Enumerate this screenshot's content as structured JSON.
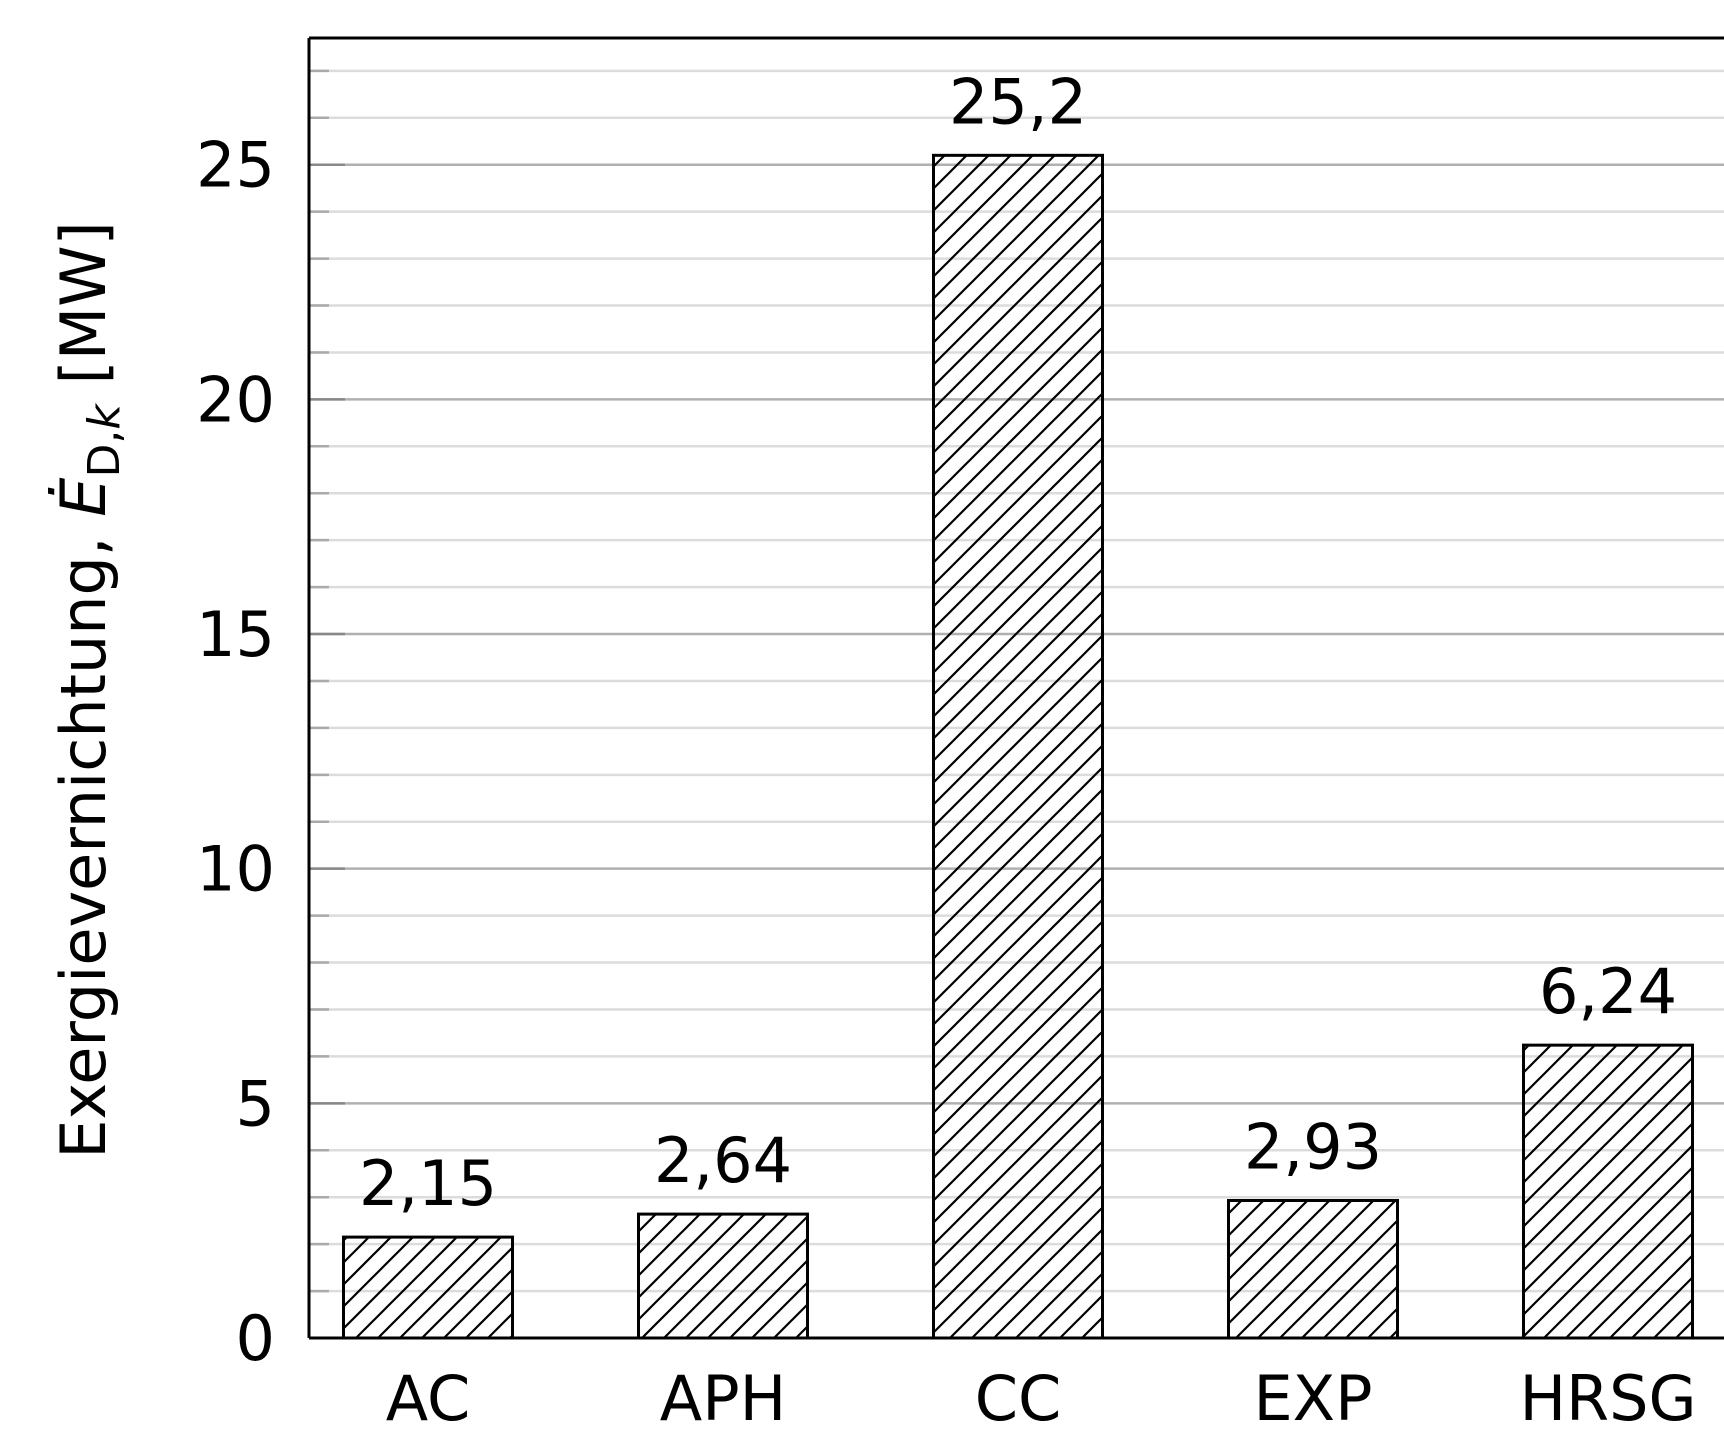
{
  "chart_data": {
    "type": "bar",
    "categories": [
      "AC",
      "APH",
      "CC",
      "EXP",
      "HRSG"
    ],
    "values": [
      2.15,
      2.64,
      25.2,
      2.93,
      6.24
    ],
    "value_labels": [
      "2,15",
      "2,64",
      "25,2",
      "2,93",
      "6,24"
    ],
    "ylabel": {
      "prefix": "Exergievernichtung, ",
      "symbol": "E",
      "subscript": "D,",
      "subscript_italic": "k",
      "unit": " [MW]"
    },
    "ylim": [
      0,
      27.7
    ],
    "yticks": [
      0,
      5,
      10,
      15,
      20,
      25
    ],
    "minor_tick_step": 1,
    "grid": true,
    "bar_fill": "hatched",
    "colors": {
      "bar_edge": "#000000",
      "major_grid": "#b0b0b0",
      "minor_grid": "#dcdcdc"
    }
  }
}
